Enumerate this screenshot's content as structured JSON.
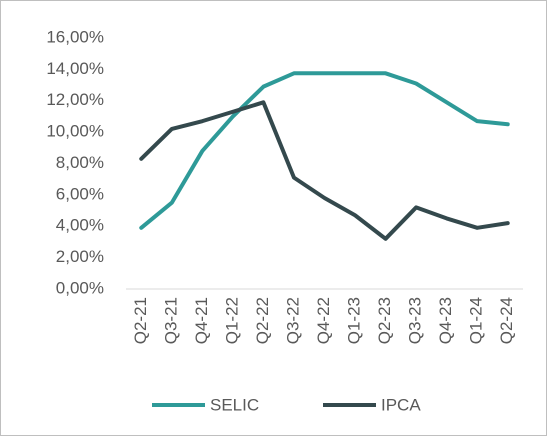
{
  "chart_data": {
    "type": "line",
    "categories": [
      "Q2-21",
      "Q3-21",
      "Q4-21",
      "Q1-22",
      "Q2-22",
      "Q3-22",
      "Q4-22",
      "Q1-23",
      "Q2-23",
      "Q3-23",
      "Q4-23",
      "Q1-24",
      "Q2-24"
    ],
    "series": [
      {
        "name": "SELIC",
        "color": "#2e9a98",
        "values": [
          3.9,
          5.5,
          8.8,
          11.0,
          12.9,
          13.75,
          13.75,
          13.75,
          13.75,
          13.1,
          11.9,
          10.7,
          10.5
        ]
      },
      {
        "name": "IPCA",
        "color": "#34494d",
        "values": [
          8.3,
          10.2,
          10.7,
          11.3,
          11.9,
          7.1,
          5.8,
          4.7,
          3.2,
          5.2,
          4.5,
          3.9,
          4.2
        ]
      }
    ],
    "ylim": [
      0,
      16
    ],
    "yticks": [
      {
        "value": 0,
        "label": "0,00%"
      },
      {
        "value": 2,
        "label": "2,00%"
      },
      {
        "value": 4,
        "label": "4,00%"
      },
      {
        "value": 6,
        "label": "6,00%"
      },
      {
        "value": 8,
        "label": "8,00%"
      },
      {
        "value": 10,
        "label": "10,00%"
      },
      {
        "value": 12,
        "label": "12,00%"
      },
      {
        "value": 14,
        "label": "14,00%"
      },
      {
        "value": 16,
        "label": "16,00%"
      }
    ],
    "grid": false,
    "legend": "bottom"
  }
}
